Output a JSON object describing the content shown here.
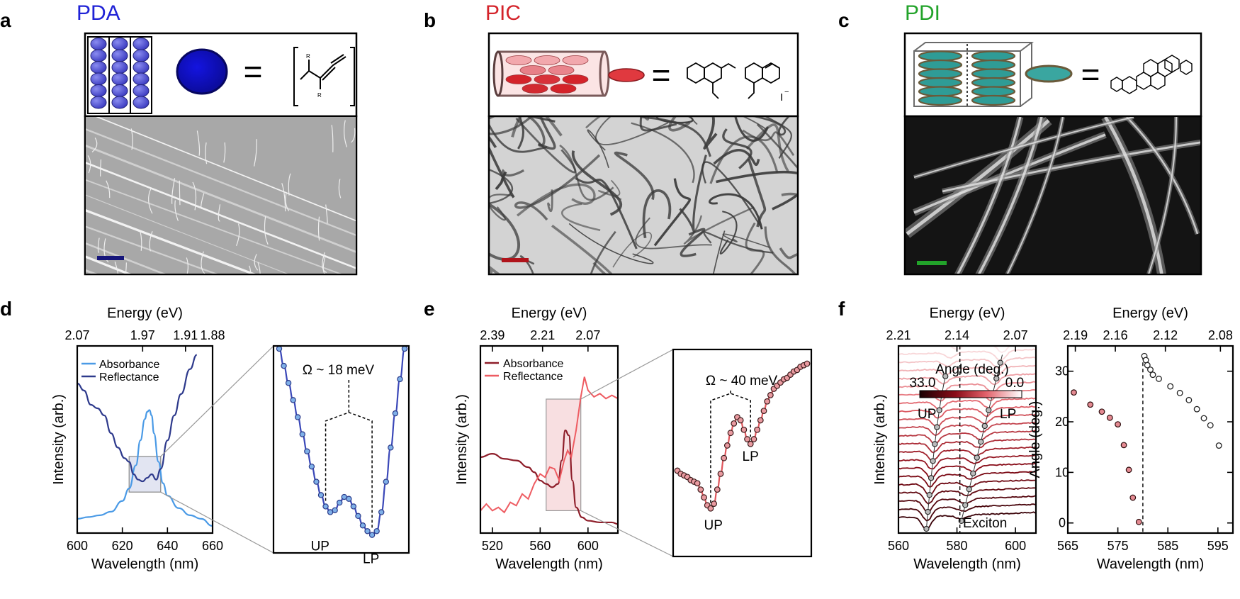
{
  "colors": {
    "pda": "#1f22d6",
    "pic": "#d4232a",
    "pdi": "#22a32a",
    "absorbance_pda": "#4a9ae6",
    "reflectance_pda": "#2e3a8c",
    "absorbance_pic": "#8e1e2a",
    "reflectance_pic": "#ee5c62"
  },
  "panels": {
    "a": {
      "letter": "a",
      "title": "PDA"
    },
    "b": {
      "letter": "b",
      "title": "PIC"
    },
    "c": {
      "letter": "c",
      "title": "PDI"
    },
    "d": {
      "letter": "d"
    },
    "e": {
      "letter": "e"
    },
    "f": {
      "letter": "f"
    }
  },
  "schematic": {
    "equals": "=",
    "pic_counter_ion": "I",
    "pic_counter_charge": "−",
    "pda_r_label": "R"
  },
  "chart_data": [
    {
      "id": "d",
      "type": "line",
      "xlabel": "Wavelength (nm)",
      "x2label": "Energy (eV)",
      "ylabel": "Intensity (arb.)",
      "xlim": [
        600,
        660
      ],
      "xticks": [
        "600",
        "620",
        "640",
        "660"
      ],
      "x2ticks": [
        "2.07",
        "1.97",
        "1.91",
        "1.88"
      ],
      "legend": [
        "Absorbance",
        "Reflectance"
      ],
      "series": [
        {
          "name": "Absorbance",
          "x": [
            600,
            605,
            610,
            615,
            620,
            623,
            626,
            628,
            630,
            631,
            632,
            633,
            634,
            636,
            638,
            640,
            645,
            650,
            655,
            660
          ],
          "y": [
            0.08,
            0.09,
            0.1,
            0.12,
            0.18,
            0.25,
            0.38,
            0.52,
            0.64,
            0.68,
            0.69,
            0.66,
            0.56,
            0.4,
            0.28,
            0.21,
            0.14,
            0.1,
            0.08,
            0.04
          ]
        },
        {
          "name": "Reflectance",
          "x": [
            600,
            603,
            606,
            609,
            612,
            615,
            618,
            621,
            623,
            625,
            627,
            629,
            631,
            633,
            635,
            637,
            640,
            643,
            646,
            650,
            653
          ],
          "y": [
            0.84,
            0.8,
            0.72,
            0.7,
            0.66,
            0.56,
            0.48,
            0.42,
            0.4,
            0.33,
            0.3,
            0.29,
            0.31,
            0.33,
            0.3,
            0.36,
            0.52,
            0.66,
            0.78,
            0.92,
            1.0
          ]
        }
      ],
      "inset": {
        "label_up": "UP",
        "label_lp": "LP",
        "label_omega": "Ω ~ 18 meV",
        "x": [
          0,
          1,
          2,
          3,
          4,
          5,
          6,
          7,
          8,
          9,
          10,
          11,
          12,
          13,
          14,
          15,
          16,
          17,
          18,
          19,
          20,
          21,
          22,
          23,
          24,
          25,
          26,
          27
        ],
        "y": [
          1.0,
          0.91,
          0.82,
          0.73,
          0.64,
          0.55,
          0.46,
          0.38,
          0.3,
          0.23,
          0.17,
          0.14,
          0.15,
          0.19,
          0.22,
          0.21,
          0.17,
          0.12,
          0.07,
          0.04,
          0.02,
          0.04,
          0.14,
          0.3,
          0.48,
          0.66,
          0.84,
          1.0
        ]
      }
    },
    {
      "id": "e",
      "type": "line",
      "xlabel": "Wavelength (nm)",
      "x2label": "Energy (eV)",
      "ylabel": "Intensity (arb.)",
      "xlim": [
        510,
        625
      ],
      "xticks": [
        "520",
        "560",
        "600"
      ],
      "x2ticks": [
        "2.39",
        "2.21",
        "2.07"
      ],
      "legend": [
        "Absorbance",
        "Reflectance"
      ],
      "series": [
        {
          "name": "Absorbance",
          "x": [
            510,
            520,
            530,
            540,
            550,
            555,
            560,
            565,
            570,
            575,
            578,
            581,
            584,
            587,
            590,
            595,
            600,
            610,
            620,
            625
          ],
          "y": [
            0.42,
            0.44,
            0.41,
            0.4,
            0.36,
            0.33,
            0.28,
            0.26,
            0.24,
            0.26,
            0.4,
            0.58,
            0.55,
            0.28,
            0.12,
            0.06,
            0.04,
            0.03,
            0.03,
            0.02
          ]
        },
        {
          "name": "Reflectance",
          "x": [
            510,
            515,
            520,
            525,
            530,
            535,
            540,
            545,
            550,
            555,
            560,
            564,
            568,
            572,
            576,
            580,
            583,
            586,
            590,
            594,
            597,
            600,
            605,
            610,
            615,
            620,
            625
          ],
          "y": [
            0.1,
            0.14,
            0.1,
            0.12,
            0.09,
            0.15,
            0.13,
            0.2,
            0.17,
            0.26,
            0.32,
            0.3,
            0.36,
            0.35,
            0.28,
            0.4,
            0.46,
            0.42,
            0.58,
            0.78,
            0.9,
            0.82,
            0.78,
            0.8,
            0.77,
            0.79,
            0.77
          ]
        }
      ],
      "inset": {
        "label_up": "UP",
        "label_lp": "LP",
        "label_omega": "Ω ~ 40 meV",
        "x": [
          0,
          1,
          2,
          3,
          4,
          5,
          6,
          7,
          8,
          9,
          10,
          11,
          12,
          13,
          14,
          15,
          16,
          17,
          18,
          19,
          20,
          21,
          22,
          23,
          24,
          25,
          26,
          27,
          28,
          29,
          30,
          31,
          32,
          33,
          34,
          35,
          36,
          37,
          38,
          39
        ],
        "y": [
          0.32,
          0.3,
          0.29,
          0.28,
          0.26,
          0.25,
          0.24,
          0.2,
          0.15,
          0.1,
          0.08,
          0.11,
          0.2,
          0.3,
          0.4,
          0.48,
          0.56,
          0.62,
          0.66,
          0.64,
          0.58,
          0.52,
          0.49,
          0.52,
          0.58,
          0.64,
          0.7,
          0.76,
          0.8,
          0.84,
          0.86,
          0.88,
          0.9,
          0.91,
          0.93,
          0.95,
          0.96,
          0.98,
          0.99,
          1.0
        ]
      }
    },
    {
      "id": "f1",
      "type": "line",
      "xlabel": "Wavelength (nm)",
      "x2label": "Energy (eV)",
      "ylabel": "Intensity (arb.)",
      "xlim": [
        560,
        607
      ],
      "xticks": [
        "560",
        "580",
        "600"
      ],
      "x2ticks": [
        "2.21",
        "2.14",
        "2.07"
      ],
      "colorbar_title": "Angle (deg.)",
      "colorbar_min": "33.0",
      "colorbar_max": "0.0",
      "label_up": "UP",
      "label_lp": "LP",
      "label_exciton": "Exciton",
      "exciton_wavelength": 581
    },
    {
      "id": "f2",
      "type": "scatter",
      "xlabel": "Wavelength (nm)",
      "x2label": "Energy (eV)",
      "ylabel": "Angle (deg.)",
      "xlim": [
        565,
        598
      ],
      "ylim": [
        -2,
        35
      ],
      "xticks": [
        "565",
        "575",
        "585",
        "595"
      ],
      "x2ticks": [
        "2.19",
        "2.16",
        "2.12",
        "2.08"
      ],
      "yticks": [
        "0",
        "10",
        "20",
        "30"
      ],
      "series": [
        {
          "name": "UP",
          "x": [
            566.2,
            569.5,
            571.8,
            573.4,
            575.0,
            576.2,
            577.2,
            578.0,
            579.2
          ],
          "y": [
            25.8,
            23.4,
            22.0,
            20.8,
            19.5,
            15.4,
            10.5,
            5.0,
            0.2
          ]
        },
        {
          "name": "LP",
          "x": [
            580.3,
            580.6,
            580.9,
            581.5,
            582.0,
            583.2,
            585.5,
            587.4,
            589.2,
            590.8,
            592.2,
            593.5,
            595.2
          ],
          "y": [
            33.0,
            32.2,
            31.2,
            30.3,
            29.3,
            28.5,
            27.0,
            25.7,
            24.3,
            22.5,
            20.7,
            19.3,
            15.3
          ]
        }
      ]
    }
  ]
}
